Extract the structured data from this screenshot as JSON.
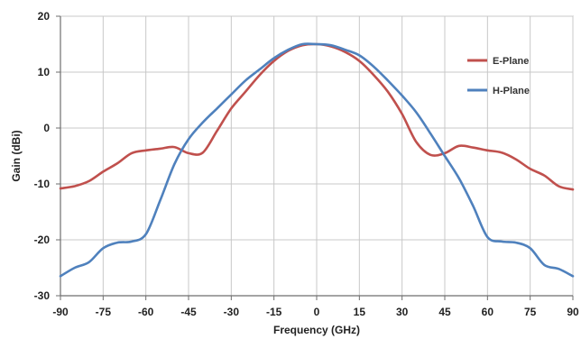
{
  "chart_data": {
    "type": "line",
    "xlabel": "Frequency (GHz)",
    "ylabel": "Gain (dBi)",
    "xlim": [
      -90,
      90
    ],
    "ylim": [
      -30,
      20
    ],
    "xticks": [
      -90,
      -75,
      -60,
      -45,
      -30,
      -15,
      0,
      15,
      30,
      45,
      60,
      75,
      90
    ],
    "yticks": [
      -30,
      -20,
      -10,
      0,
      10,
      20
    ],
    "grid": true,
    "legend": "right",
    "series": [
      {
        "name": "E-Plane",
        "color": "#c0504d",
        "x": [
          -90,
          -85,
          -80,
          -75,
          -70,
          -65,
          -60,
          -55,
          -50,
          -45,
          -40,
          -35,
          -30,
          -25,
          -20,
          -15,
          -10,
          -5,
          0,
          5,
          10,
          15,
          20,
          25,
          30,
          35,
          40,
          45,
          50,
          55,
          60,
          65,
          70,
          75,
          80,
          85,
          90
        ],
        "y": [
          -10.8,
          -10.4,
          -9.5,
          -7.8,
          -6.3,
          -4.5,
          -4,
          -3.7,
          -3.4,
          -4.5,
          -4.4,
          -0.5,
          3.5,
          6.5,
          9.5,
          12,
          13.8,
          14.8,
          15,
          14.6,
          13.6,
          12,
          9.5,
          6.5,
          2.5,
          -2.5,
          -4.8,
          -4.5,
          -3.2,
          -3.5,
          -4,
          -4.4,
          -5.6,
          -7.3,
          -8.5,
          -10.4,
          -11
        ]
      },
      {
        "name": "H-Plane",
        "color": "#4f81bd",
        "x": [
          -90,
          -85,
          -80,
          -75,
          -70,
          -65,
          -60,
          -55,
          -50,
          -45,
          -40,
          -35,
          -30,
          -25,
          -20,
          -15,
          -10,
          -5,
          0,
          5,
          10,
          15,
          20,
          25,
          30,
          35,
          40,
          45,
          50,
          55,
          60,
          65,
          70,
          75,
          80,
          85,
          90
        ],
        "y": [
          -26.5,
          -25,
          -24,
          -21.5,
          -20.5,
          -20.3,
          -19,
          -13,
          -6.5,
          -2,
          1,
          3.5,
          6,
          8.5,
          10.5,
          12.5,
          14,
          15,
          15,
          14.8,
          14,
          13,
          11,
          8.5,
          5.8,
          2.8,
          -1,
          -5,
          -9,
          -14,
          -19.5,
          -20.3,
          -20.5,
          -21.5,
          -24.5,
          -25.2,
          -26.5
        ]
      }
    ]
  }
}
